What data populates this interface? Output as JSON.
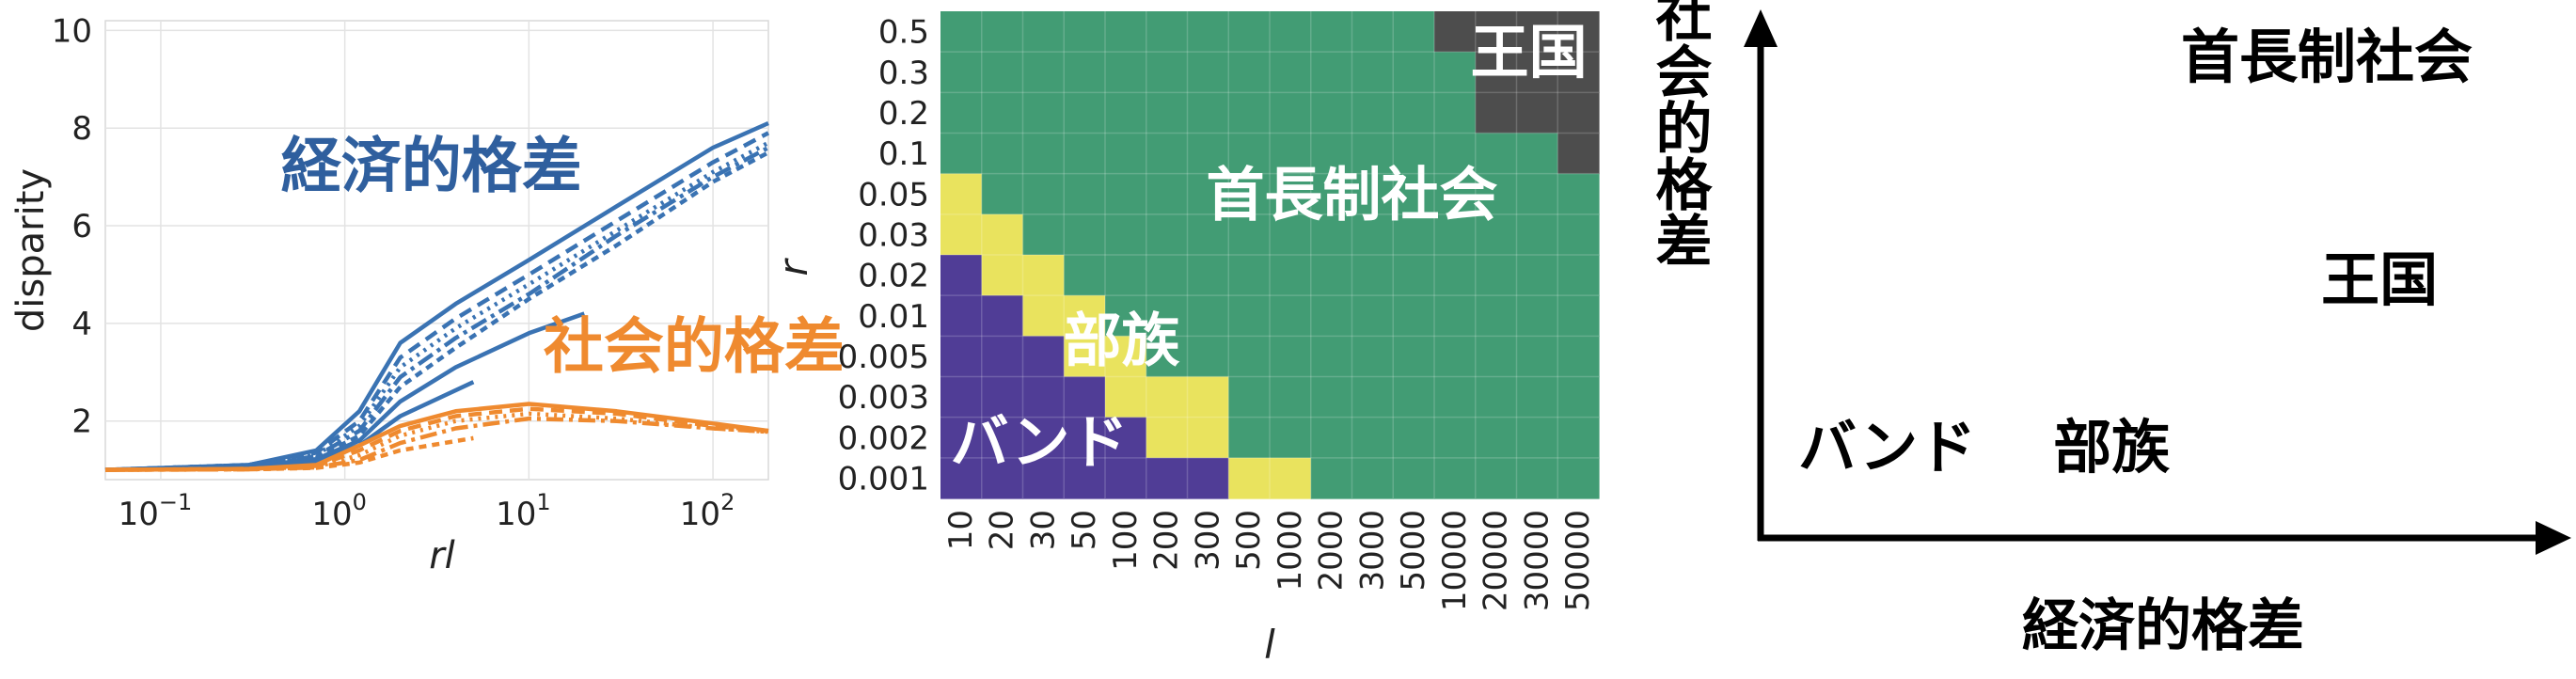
{
  "colors": {
    "economic": "#2f5f9e",
    "economic_lines": "#3a73b3",
    "social": "#ef8a2f",
    "band": "#503d96",
    "tribe": "#e9e35e",
    "chiefdom": "#429c74",
    "kingdom": "#4d4d4d",
    "grid": "#e3e3e3",
    "axis": "#222222"
  },
  "chart_data": [
    {
      "type": "line",
      "xlabel": "rl",
      "ylabel": "disparity",
      "xscale": "log",
      "xlim": [
        0.05,
        200
      ],
      "ylim": [
        0.8,
        10.2
      ],
      "grid": true,
      "x_ticks": [
        {
          "base": "10",
          "exp": "−1",
          "value": 0.1
        },
        {
          "base": "10",
          "exp": "0",
          "value": 1
        },
        {
          "base": "10",
          "exp": "1",
          "value": 10
        },
        {
          "base": "10",
          "exp": "2",
          "value": 100
        }
      ],
      "y_ticks": [
        {
          "label": "2",
          "value": 2
        },
        {
          "label": "4",
          "value": 4
        },
        {
          "label": "6",
          "value": 6
        },
        {
          "label": "8",
          "value": 8
        },
        {
          "label": "10",
          "value": 10
        }
      ],
      "annotations": [
        {
          "text": "経済的格差",
          "x": 0.45,
          "y": 6.8,
          "color_key": "economic"
        },
        {
          "text": "社会的格差",
          "x": 12,
          "y": 3.1,
          "color_key": "social"
        }
      ],
      "series": [
        {
          "group": "economic",
          "x": [
            0.05,
            0.3,
            0.7,
            1.2,
            2,
            4,
            10,
            30,
            100,
            200
          ],
          "y": [
            1.0,
            1.1,
            1.4,
            2.2,
            3.6,
            4.4,
            5.3,
            6.4,
            7.6,
            8.1
          ]
        },
        {
          "group": "economic",
          "x": [
            0.05,
            0.3,
            0.7,
            1.2,
            2,
            4,
            10,
            30,
            100,
            200
          ],
          "y": [
            1.0,
            1.1,
            1.35,
            2.0,
            3.3,
            4.1,
            5.0,
            6.1,
            7.3,
            7.9
          ]
        },
        {
          "group": "economic",
          "x": [
            0.05,
            0.3,
            0.7,
            1.2,
            2,
            4,
            10,
            30,
            100,
            200
          ],
          "y": [
            1.0,
            1.1,
            1.3,
            1.9,
            3.1,
            3.9,
            4.8,
            5.9,
            7.1,
            7.7
          ]
        },
        {
          "group": "economic",
          "x": [
            0.05,
            0.3,
            0.7,
            1.2,
            2,
            4,
            10,
            30,
            100,
            200
          ],
          "y": [
            1.0,
            1.08,
            1.28,
            1.8,
            2.9,
            3.7,
            4.6,
            5.8,
            7.0,
            7.6
          ]
        },
        {
          "group": "economic",
          "x": [
            0.05,
            0.3,
            0.7,
            1.2,
            2,
            4,
            10,
            30,
            100,
            200
          ],
          "y": [
            1.0,
            1.08,
            1.25,
            1.7,
            2.7,
            3.5,
            4.5,
            5.6,
            6.9,
            7.5
          ]
        },
        {
          "group": "economic",
          "x": [
            0.05,
            0.3,
            0.7,
            1.2,
            2,
            4,
            10,
            20
          ],
          "y": [
            1.0,
            1.07,
            1.22,
            1.6,
            2.4,
            3.1,
            3.8,
            4.2
          ]
        },
        {
          "group": "economic",
          "x": [
            0.05,
            0.3,
            0.7,
            1.2,
            2,
            5
          ],
          "y": [
            1.0,
            1.06,
            1.18,
            1.5,
            2.1,
            2.8
          ]
        },
        {
          "group": "social",
          "x": [
            0.05,
            0.3,
            0.7,
            1.2,
            2,
            4,
            10,
            30,
            100,
            200
          ],
          "y": [
            1.0,
            1.02,
            1.1,
            1.5,
            1.9,
            2.2,
            2.35,
            2.2,
            1.95,
            1.8
          ]
        },
        {
          "group": "social",
          "x": [
            0.05,
            0.3,
            0.7,
            1.2,
            2,
            4,
            10,
            30,
            100,
            200
          ],
          "y": [
            1.0,
            1.02,
            1.08,
            1.4,
            1.8,
            2.1,
            2.25,
            2.15,
            1.9,
            1.8
          ]
        },
        {
          "group": "social",
          "x": [
            0.05,
            0.3,
            0.7,
            1.2,
            2,
            4,
            10,
            30,
            100,
            200
          ],
          "y": [
            1.0,
            1.02,
            1.06,
            1.3,
            1.7,
            2.0,
            2.15,
            2.05,
            1.85,
            1.78
          ]
        },
        {
          "group": "social",
          "x": [
            0.05,
            0.3,
            0.7,
            1.2,
            2,
            4,
            10,
            30,
            100,
            200
          ],
          "y": [
            1.0,
            1.01,
            1.05,
            1.2,
            1.55,
            1.85,
            2.05,
            2.0,
            1.85,
            1.78
          ]
        },
        {
          "group": "social",
          "x": [
            0.05,
            0.3,
            0.7,
            1.2,
            2,
            5
          ],
          "y": [
            1.0,
            1.01,
            1.04,
            1.15,
            1.4,
            1.65
          ]
        }
      ]
    },
    {
      "type": "heatmap",
      "xlabel": "l",
      "ylabel": "r",
      "x_categories": [
        "10",
        "20",
        "30",
        "50",
        "100",
        "200",
        "300",
        "500",
        "1000",
        "2000",
        "3000",
        "5000",
        "10000",
        "20000",
        "30000",
        "50000"
      ],
      "y_categories": [
        "0.5",
        "0.3",
        "0.2",
        "0.1",
        "0.05",
        "0.03",
        "0.02",
        "0.01",
        "0.005",
        "0.003",
        "0.002",
        "0.001"
      ],
      "categories": [
        "band",
        "tribe",
        "chiefdom",
        "kingdom"
      ],
      "legend_codes": {
        "0": "band",
        "1": "tribe",
        "2": "chiefdom",
        "3": "kingdom"
      },
      "grid_values": [
        [
          2,
          2,
          2,
          2,
          2,
          2,
          2,
          2,
          2,
          2,
          2,
          2,
          3,
          3,
          3,
          3
        ],
        [
          2,
          2,
          2,
          2,
          2,
          2,
          2,
          2,
          2,
          2,
          2,
          2,
          2,
          3,
          3,
          3
        ],
        [
          2,
          2,
          2,
          2,
          2,
          2,
          2,
          2,
          2,
          2,
          2,
          2,
          2,
          3,
          3,
          3
        ],
        [
          2,
          2,
          2,
          2,
          2,
          2,
          2,
          2,
          2,
          2,
          2,
          2,
          2,
          2,
          2,
          3
        ],
        [
          1,
          2,
          2,
          2,
          2,
          2,
          2,
          2,
          2,
          2,
          2,
          2,
          2,
          2,
          2,
          2
        ],
        [
          1,
          1,
          2,
          2,
          2,
          2,
          2,
          2,
          2,
          2,
          2,
          2,
          2,
          2,
          2,
          2
        ],
        [
          0,
          1,
          1,
          2,
          2,
          2,
          2,
          2,
          2,
          2,
          2,
          2,
          2,
          2,
          2,
          2
        ],
        [
          0,
          0,
          1,
          1,
          2,
          2,
          2,
          2,
          2,
          2,
          2,
          2,
          2,
          2,
          2,
          2
        ],
        [
          0,
          0,
          0,
          1,
          1,
          2,
          2,
          2,
          2,
          2,
          2,
          2,
          2,
          2,
          2,
          2
        ],
        [
          0,
          0,
          0,
          0,
          1,
          1,
          1,
          2,
          2,
          2,
          2,
          2,
          2,
          2,
          2,
          2
        ],
        [
          0,
          0,
          0,
          0,
          0,
          1,
          1,
          2,
          2,
          2,
          2,
          2,
          2,
          2,
          2,
          2
        ],
        [
          0,
          0,
          0,
          0,
          0,
          0,
          0,
          1,
          1,
          2,
          2,
          2,
          2,
          2,
          2,
          2
        ]
      ],
      "region_labels": [
        {
          "text": "王国",
          "col": 14.3,
          "row": 1.0,
          "color": "#ffffff"
        },
        {
          "text": "首長制社会",
          "col": 10.0,
          "row": 4.5,
          "color": "#ffffff"
        },
        {
          "text": "部族",
          "col": 4.4,
          "row": 8.1,
          "color": "#ffffff"
        },
        {
          "text": "バンド",
          "col": 2.4,
          "row": 10.6,
          "color": "#ffffff"
        }
      ]
    },
    {
      "type": "scatter",
      "xlabel": "経済的格差",
      "ylabel": "社会的格差",
      "points": [
        {
          "label": "バンド",
          "x": 1,
          "y": 1
        },
        {
          "label": "部族",
          "x": 3,
          "y": 1
        },
        {
          "label": "首長制社会",
          "x": 4,
          "y": 4.5
        },
        {
          "label": "王国",
          "x": 5.1,
          "y": 2.5
        }
      ]
    }
  ]
}
